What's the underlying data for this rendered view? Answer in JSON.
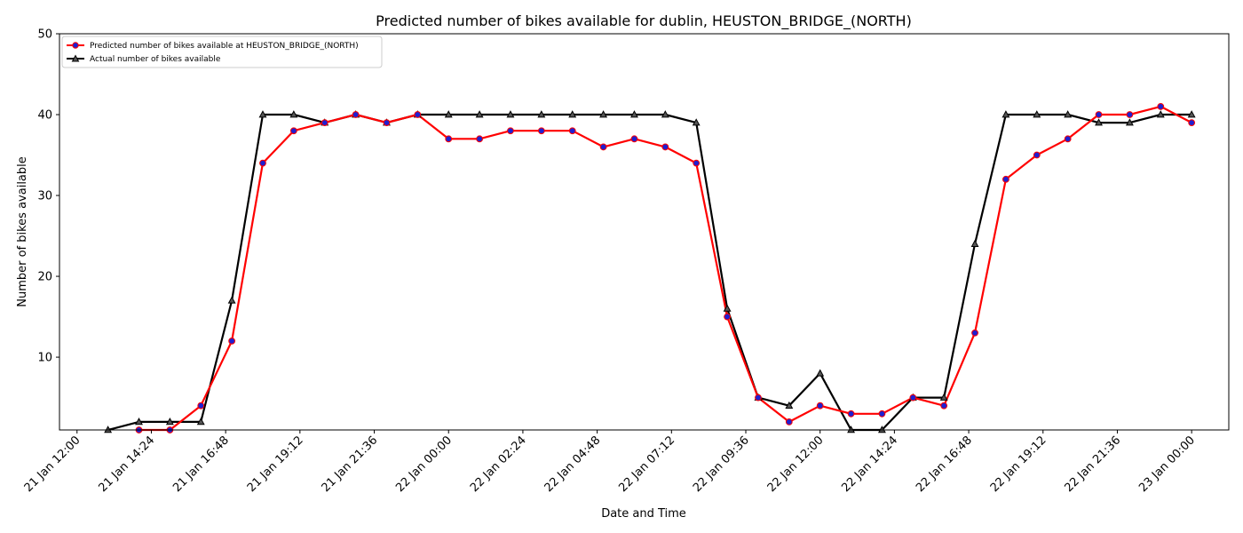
{
  "chart_data": {
    "type": "line",
    "title": "Predicted number of bikes available for dublin, HEUSTON_BRIDGE_(NORTH)",
    "xlabel": "Date and Time",
    "ylabel": "Number of bikes available",
    "ylim": [
      1,
      50
    ],
    "xlim": [
      "21 Jan 11:26",
      "23 Jan 01:12"
    ],
    "y_ticks": [
      10,
      20,
      30,
      40,
      50
    ],
    "x_ticks": [
      {
        "t": "21 Jan 12:00",
        "label": "21 Jan 12:00"
      },
      {
        "t": "21 Jan 14:24",
        "label": "21 Jan 14:24"
      },
      {
        "t": "21 Jan 16:48",
        "label": "21 Jan 16:48"
      },
      {
        "t": "21 Jan 19:12",
        "label": "21 Jan 19:12"
      },
      {
        "t": "21 Jan 21:36",
        "label": "21 Jan 21:36"
      },
      {
        "t": "22 Jan 00:00",
        "label": "22 Jan 00:00"
      },
      {
        "t": "22 Jan 02:24",
        "label": "22 Jan 02:24"
      },
      {
        "t": "22 Jan 04:48",
        "label": "22 Jan 04:48"
      },
      {
        "t": "22 Jan 07:12",
        "label": "22 Jan 07:12"
      },
      {
        "t": "22 Jan 09:36",
        "label": "22 Jan 09:36"
      },
      {
        "t": "22 Jan 12:00",
        "label": "22 Jan 12:00"
      },
      {
        "t": "22 Jan 14:24",
        "label": "22 Jan 14:24"
      },
      {
        "t": "22 Jan 16:48",
        "label": "22 Jan 16:48"
      },
      {
        "t": "22 Jan 19:12",
        "label": "22 Jan 19:12"
      },
      {
        "t": "22 Jan 21:36",
        "label": "22 Jan 21:36"
      },
      {
        "t": "23 Jan 00:00",
        "label": "23 Jan 00:00"
      }
    ],
    "grid": false,
    "legend_position": "top-left",
    "series": [
      {
        "name": "Predicted number of bikes available at HEUSTON_BRIDGE_(NORTH)",
        "color": "#ff0000",
        "marker": "circle",
        "marker_fill": "#1f1fd0",
        "points": [
          {
            "x": "21 Jan 14:00",
            "y": 1
          },
          {
            "x": "21 Jan 15:00",
            "y": 1
          },
          {
            "x": "21 Jan 16:00",
            "y": 4
          },
          {
            "x": "21 Jan 17:00",
            "y": 12
          },
          {
            "x": "21 Jan 18:00",
            "y": 34
          },
          {
            "x": "21 Jan 19:00",
            "y": 38
          },
          {
            "x": "21 Jan 20:00",
            "y": 39
          },
          {
            "x": "21 Jan 21:00",
            "y": 40
          },
          {
            "x": "21 Jan 22:00",
            "y": 39
          },
          {
            "x": "21 Jan 23:00",
            "y": 40
          },
          {
            "x": "22 Jan 00:00",
            "y": 37
          },
          {
            "x": "22 Jan 01:00",
            "y": 37
          },
          {
            "x": "22 Jan 02:00",
            "y": 38
          },
          {
            "x": "22 Jan 03:00",
            "y": 38
          },
          {
            "x": "22 Jan 04:00",
            "y": 38
          },
          {
            "x": "22 Jan 05:00",
            "y": 36
          },
          {
            "x": "22 Jan 06:00",
            "y": 37
          },
          {
            "x": "22 Jan 07:00",
            "y": 36
          },
          {
            "x": "22 Jan 08:00",
            "y": 34
          },
          {
            "x": "22 Jan 09:00",
            "y": 15
          },
          {
            "x": "22 Jan 10:00",
            "y": 5
          },
          {
            "x": "22 Jan 11:00",
            "y": 2
          },
          {
            "x": "22 Jan 12:00",
            "y": 4
          },
          {
            "x": "22 Jan 13:00",
            "y": 3
          },
          {
            "x": "22 Jan 14:00",
            "y": 3
          },
          {
            "x": "22 Jan 15:00",
            "y": 5
          },
          {
            "x": "22 Jan 16:00",
            "y": 4
          },
          {
            "x": "22 Jan 17:00",
            "y": 13
          },
          {
            "x": "22 Jan 18:00",
            "y": 32
          },
          {
            "x": "22 Jan 19:00",
            "y": 35
          },
          {
            "x": "22 Jan 20:00",
            "y": 37
          },
          {
            "x": "22 Jan 21:00",
            "y": 40
          },
          {
            "x": "22 Jan 22:00",
            "y": 40
          },
          {
            "x": "22 Jan 23:00",
            "y": 41
          },
          {
            "x": "23 Jan 00:00",
            "y": 39
          }
        ]
      },
      {
        "name": "Actual number of bikes available",
        "color": "#000000",
        "marker": "triangle",
        "marker_fill": "#555555",
        "points": [
          {
            "x": "21 Jan 13:00",
            "y": 1
          },
          {
            "x": "21 Jan 14:00",
            "y": 2
          },
          {
            "x": "21 Jan 15:00",
            "y": 2
          },
          {
            "x": "21 Jan 16:00",
            "y": 2
          },
          {
            "x": "21 Jan 17:00",
            "y": 17
          },
          {
            "x": "21 Jan 18:00",
            "y": 40
          },
          {
            "x": "21 Jan 19:00",
            "y": 40
          },
          {
            "x": "21 Jan 20:00",
            "y": 39
          },
          {
            "x": "21 Jan 21:00",
            "y": 40
          },
          {
            "x": "21 Jan 22:00",
            "y": 39
          },
          {
            "x": "21 Jan 23:00",
            "y": 40
          },
          {
            "x": "22 Jan 00:00",
            "y": 40
          },
          {
            "x": "22 Jan 01:00",
            "y": 40
          },
          {
            "x": "22 Jan 02:00",
            "y": 40
          },
          {
            "x": "22 Jan 03:00",
            "y": 40
          },
          {
            "x": "22 Jan 04:00",
            "y": 40
          },
          {
            "x": "22 Jan 05:00",
            "y": 40
          },
          {
            "x": "22 Jan 06:00",
            "y": 40
          },
          {
            "x": "22 Jan 07:00",
            "y": 40
          },
          {
            "x": "22 Jan 08:00",
            "y": 39
          },
          {
            "x": "22 Jan 09:00",
            "y": 16
          },
          {
            "x": "22 Jan 10:00",
            "y": 5
          },
          {
            "x": "22 Jan 11:00",
            "y": 4
          },
          {
            "x": "22 Jan 12:00",
            "y": 8
          },
          {
            "x": "22 Jan 13:00",
            "y": 1
          },
          {
            "x": "22 Jan 14:00",
            "y": 1
          },
          {
            "x": "22 Jan 15:00",
            "y": 5
          },
          {
            "x": "22 Jan 16:00",
            "y": 5
          },
          {
            "x": "22 Jan 17:00",
            "y": 24
          },
          {
            "x": "22 Jan 18:00",
            "y": 40
          },
          {
            "x": "22 Jan 19:00",
            "y": 40
          },
          {
            "x": "22 Jan 20:00",
            "y": 40
          },
          {
            "x": "22 Jan 21:00",
            "y": 39
          },
          {
            "x": "22 Jan 22:00",
            "y": 39
          },
          {
            "x": "22 Jan 23:00",
            "y": 40
          },
          {
            "x": "23 Jan 00:00",
            "y": 40
          }
        ]
      }
    ]
  }
}
